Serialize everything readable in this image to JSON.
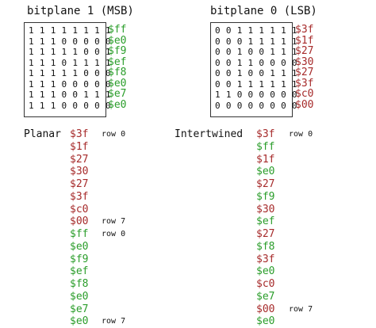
{
  "colors": {
    "msb": "#2a9d2a",
    "lsb": "#a62a2a"
  },
  "msb": {
    "title": "bitplane 1 (MSB)",
    "rows": [
      {
        "bits": "1 1 1 1 1 1 1 1",
        "hex": "$ff"
      },
      {
        "bits": "1 1 1 0 0 0 0 0",
        "hex": "$e0"
      },
      {
        "bits": "1 1 1 1 1 0 0 1",
        "hex": "$f9"
      },
      {
        "bits": "1 1 1 0 1 1 1 1",
        "hex": "$ef"
      },
      {
        "bits": "1 1 1 1 1 0 0 0",
        "hex": "$f8"
      },
      {
        "bits": "1 1 1 0 0 0 0 0",
        "hex": "$e0"
      },
      {
        "bits": "1 1 1 0 0 1 1 1",
        "hex": "$e7"
      },
      {
        "bits": "1 1 1 0 0 0 0 0",
        "hex": "$e0"
      }
    ]
  },
  "lsb": {
    "title": "bitplane 0 (LSB)",
    "rows": [
      {
        "bits": "0 0 1 1 1 1 1 1",
        "hex": "$3f"
      },
      {
        "bits": "0 0 0 1 1 1 1 1",
        "hex": "$1f"
      },
      {
        "bits": "0 0 1 0 0 1 1 1",
        "hex": "$27"
      },
      {
        "bits": "0 0 1 1 0 0 0 0",
        "hex": "$30"
      },
      {
        "bits": "0 0 1 0 0 1 1 1",
        "hex": "$27"
      },
      {
        "bits": "0 0 1 1 1 1 1 1",
        "hex": "$3f"
      },
      {
        "bits": "1 1 0 0 0 0 0 0",
        "hex": "$c0"
      },
      {
        "bits": "0 0 0 0 0 0 0 0",
        "hex": "$00"
      }
    ]
  },
  "planar": {
    "label": "Planar",
    "items": [
      {
        "hex": "$3f",
        "plane": "lsb"
      },
      {
        "hex": "$1f",
        "plane": "lsb"
      },
      {
        "hex": "$27",
        "plane": "lsb"
      },
      {
        "hex": "$30",
        "plane": "lsb"
      },
      {
        "hex": "$27",
        "plane": "lsb"
      },
      {
        "hex": "$3f",
        "plane": "lsb"
      },
      {
        "hex": "$c0",
        "plane": "lsb"
      },
      {
        "hex": "$00",
        "plane": "lsb"
      },
      {
        "hex": "$ff",
        "plane": "msb"
      },
      {
        "hex": "$e0",
        "plane": "msb"
      },
      {
        "hex": "$f9",
        "plane": "msb"
      },
      {
        "hex": "$ef",
        "plane": "msb"
      },
      {
        "hex": "$f8",
        "plane": "msb"
      },
      {
        "hex": "$e0",
        "plane": "msb"
      },
      {
        "hex": "$e7",
        "plane": "msb"
      },
      {
        "hex": "$e0",
        "plane": "msb"
      }
    ],
    "row_labels": [
      {
        "index": 0,
        "text": "row 0"
      },
      {
        "index": 7,
        "text": "row 7"
      },
      {
        "index": 8,
        "text": "row 0"
      },
      {
        "index": 15,
        "text": "row 7"
      }
    ]
  },
  "intertwined": {
    "label": "Intertwined",
    "items": [
      {
        "hex": "$3f",
        "plane": "lsb"
      },
      {
        "hex": "$ff",
        "plane": "msb"
      },
      {
        "hex": "$1f",
        "plane": "lsb"
      },
      {
        "hex": "$e0",
        "plane": "msb"
      },
      {
        "hex": "$27",
        "plane": "lsb"
      },
      {
        "hex": "$f9",
        "plane": "msb"
      },
      {
        "hex": "$30",
        "plane": "lsb"
      },
      {
        "hex": "$ef",
        "plane": "msb"
      },
      {
        "hex": "$27",
        "plane": "lsb"
      },
      {
        "hex": "$f8",
        "plane": "msb"
      },
      {
        "hex": "$3f",
        "plane": "lsb"
      },
      {
        "hex": "$e0",
        "plane": "msb"
      },
      {
        "hex": "$c0",
        "plane": "lsb"
      },
      {
        "hex": "$e7",
        "plane": "msb"
      },
      {
        "hex": "$00",
        "plane": "lsb"
      },
      {
        "hex": "$e0",
        "plane": "msb"
      }
    ],
    "row_labels": [
      {
        "index": 0,
        "text": "row 0"
      },
      {
        "index": 14,
        "text": "row 7"
      }
    ]
  }
}
